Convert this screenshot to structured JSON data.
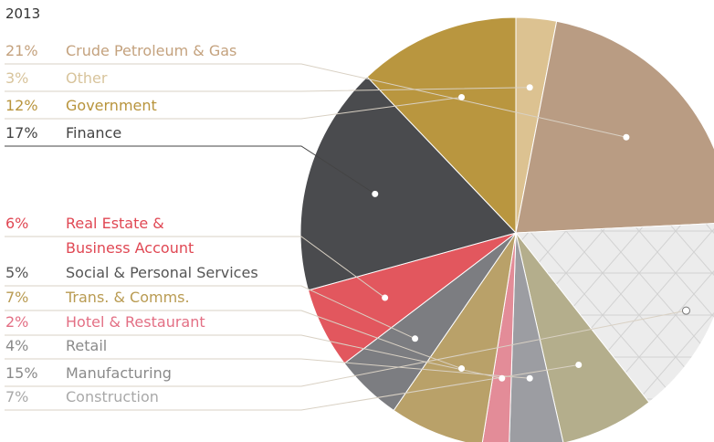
{
  "chart_data": {
    "type": "pie",
    "title": "2013",
    "categories": [
      "Other",
      "Crude Petroleum & Gas",
      "Manufacturing",
      "Construction",
      "Retail",
      "Hotel & Restaurant",
      "Trans. & Comms.",
      "Social & Personal Services",
      "Real Estate &\nBusiness Account",
      "Finance",
      "Government"
    ],
    "values": [
      3,
      21,
      15,
      7,
      4,
      2,
      7,
      5,
      6,
      17,
      12
    ],
    "value_labels": [
      "3%",
      "21%",
      "15%",
      "7%",
      "4%",
      "2%",
      "7%",
      "5%",
      "6%",
      "17%",
      "12%"
    ],
    "colors": [
      "#dcc291",
      "#b99c83",
      "#ececec",
      "#b4ae8c",
      "#9c9da2",
      "#e38c98",
      "#b9a169",
      "#7c7d81",
      "#e2575e",
      "#4a4b4e",
      "#b9963f"
    ],
    "label_colors": [
      "#d8c49c",
      "#c4a27e",
      "#8a8a8a",
      "#a9a9a9",
      "#8a8a8a",
      "#e36f84",
      "#b99b52",
      "#555555",
      "#e04854",
      "#444444",
      "#b8943c"
    ]
  }
}
